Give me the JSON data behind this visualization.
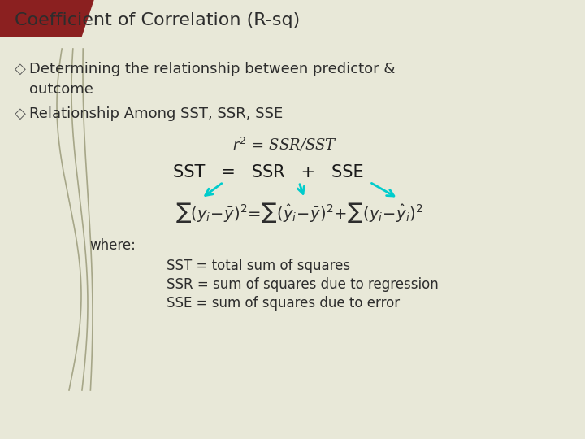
{
  "title": "Coefficient of Correlation (R-sq)",
  "bg_color": "#e8e8d8",
  "title_bg_color": "#8B2020",
  "title_color": "#2d2d2d",
  "body_color": "#2d2d2d",
  "bullet_color": "#555555",
  "where_label": "where:",
  "def1": "SST = total sum of squares",
  "def2": "SSR = sum of squares due to regression",
  "def3": "SSE = sum of squares due to error",
  "arrow_color": "#00cccc",
  "vine_color": "#9B9B7A",
  "formula2_color": "#1a1a1a"
}
